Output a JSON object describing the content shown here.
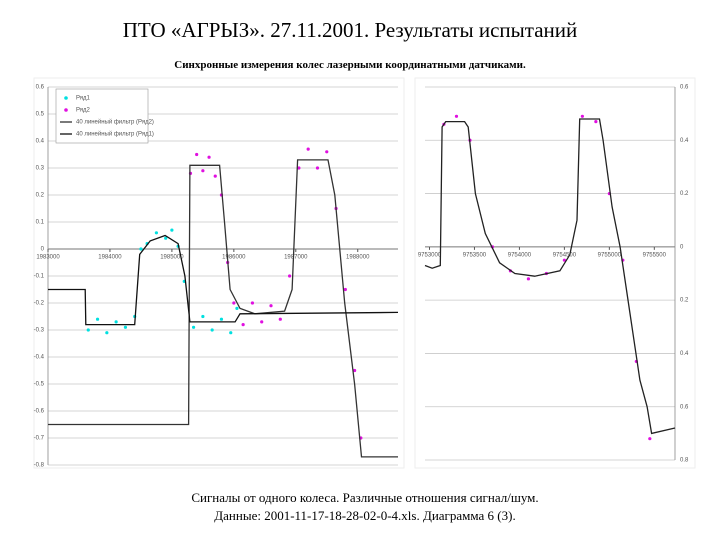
{
  "slide": {
    "title": "ПТО «АГРЫЗ». 27.11.2001. Результаты испытаний",
    "subtitle": "Синхронные измерения колес лазерными координатными датчиками.",
    "caption": [
      "Сигналы от одного колеса. Различные отношения сигнал/шум.",
      "Данные: 2001-11-17-18-28-02-0-4.xls. Диаграмма 6 (3)."
    ]
  },
  "chart_data": [
    {
      "type": "line",
      "grid": true,
      "legend": "top-left",
      "xlim": [
        1983000,
        1988650
      ],
      "xticks": [
        1983000,
        1984000,
        1985000,
        1986000,
        1987000,
        1988000
      ],
      "ylim": [
        -0.8,
        0.6
      ],
      "yticks": [
        -0.8,
        -0.7,
        -0.6,
        -0.5,
        -0.4,
        -0.3,
        -0.2,
        -0.1,
        0,
        0.1,
        0.2,
        0.3,
        0.4,
        0.5,
        0.6
      ],
      "series": [
        {
          "name": "Ряд1",
          "type": "scatter",
          "color": "#00e0e0",
          "x": [
            1983650,
            1983800,
            1983950,
            1984100,
            1984250,
            1984400,
            1984500,
            1984600,
            1984750,
            1984900,
            1985000,
            1985100,
            1985200,
            1985350,
            1985500,
            1985650,
            1985800,
            1985950,
            1986050
          ],
          "values": [
            -0.3,
            -0.26,
            -0.31,
            -0.27,
            -0.29,
            -0.25,
            0.0,
            0.02,
            0.06,
            0.04,
            0.07,
            0.01,
            -0.12,
            -0.29,
            -0.25,
            -0.3,
            -0.26,
            -0.31,
            -0.22
          ]
        },
        {
          "name": "Ряд2",
          "type": "scatter",
          "color": "#e010e0",
          "x": [
            1985300,
            1985400,
            1985500,
            1985600,
            1985700,
            1985800,
            1985900,
            1986000,
            1986150,
            1986300,
            1986450,
            1986600,
            1986750,
            1986900,
            1987050,
            1987200,
            1987350,
            1987500,
            1987650,
            1987800,
            1987950,
            1988050
          ],
          "values": [
            0.28,
            0.35,
            0.29,
            0.34,
            0.27,
            0.2,
            -0.05,
            -0.2,
            -0.28,
            -0.2,
            -0.27,
            -0.21,
            -0.26,
            -0.1,
            0.3,
            0.37,
            0.3,
            0.36,
            0.15,
            -0.15,
            -0.45,
            -0.7
          ]
        },
        {
          "name": "40 линейный фильтр (Ряд2)",
          "type": "line",
          "color": "#333333",
          "x": [
            1983000,
            1985270,
            1985290,
            1985770,
            1985850,
            1985940,
            1986100,
            1986340,
            1986820,
            1986940,
            1987030,
            1987520,
            1987630,
            1987790,
            1987950,
            1988060,
            1988650
          ],
          "values": [
            -0.65,
            -0.65,
            0.31,
            0.31,
            0.1,
            -0.15,
            -0.22,
            -0.24,
            -0.23,
            -0.15,
            0.33,
            0.33,
            0.2,
            -0.2,
            -0.5,
            -0.77,
            -0.77
          ]
        },
        {
          "name": "40 линейный фильтр (Ряд1)",
          "type": "line",
          "color": "#111111",
          "x": [
            1983000,
            1983600,
            1983610,
            1984400,
            1984480,
            1984650,
            1984890,
            1985100,
            1985210,
            1985290,
            1986020,
            1986100,
            1988650
          ],
          "values": [
            -0.15,
            -0.15,
            -0.28,
            -0.28,
            -0.02,
            0.03,
            0.05,
            0.02,
            -0.1,
            -0.27,
            -0.27,
            -0.24,
            -0.235
          ]
        }
      ]
    },
    {
      "type": "line",
      "grid": true,
      "xlim": [
        9752950,
        9755730
      ],
      "xticks": [
        9753000,
        9753500,
        9754000,
        9754500,
        9755000,
        9755500
      ],
      "ylim": [
        -0.8,
        0.6
      ],
      "yticks": [
        {
          "value": -0.8,
          "label": "0.8"
        },
        {
          "value": -0.6,
          "label": "0.6"
        },
        {
          "value": -0.4,
          "label": "0.4"
        },
        {
          "value": -0.2,
          "label": "0.2"
        },
        0,
        0.2,
        0.4,
        0.6
      ],
      "series": [
        {
          "type": "scatter",
          "color": "#e010e0",
          "x": [
            9753160,
            9753300,
            9753450,
            9753700,
            9753900,
            9754100,
            9754300,
            9754500,
            9754700,
            9754850,
            9755000,
            9755150,
            9755300,
            9755450
          ],
          "values": [
            0.46,
            0.49,
            0.4,
            0.0,
            -0.09,
            -0.12,
            -0.1,
            -0.05,
            0.49,
            0.47,
            0.2,
            -0.05,
            -0.43,
            -0.72
          ]
        },
        {
          "type": "line",
          "color": "#222222",
          "x": [
            9752950,
            9753030,
            9753120,
            9753140,
            9753180,
            9753390,
            9753430,
            9753510,
            9753620,
            9753780,
            9753950,
            9754170,
            9754450,
            9754560,
            9754640,
            9754670,
            9754890,
            9754930,
            9755030,
            9755120,
            9755230,
            9755340,
            9755420,
            9755470,
            9755730
          ],
          "values": [
            -0.07,
            -0.08,
            -0.07,
            0.45,
            0.47,
            0.47,
            0.45,
            0.2,
            0.05,
            -0.06,
            -0.1,
            -0.11,
            -0.09,
            -0.03,
            0.1,
            0.48,
            0.48,
            0.4,
            0.15,
            0,
            -0.25,
            -0.5,
            -0.6,
            -0.7,
            -0.68
          ]
        }
      ]
    }
  ]
}
